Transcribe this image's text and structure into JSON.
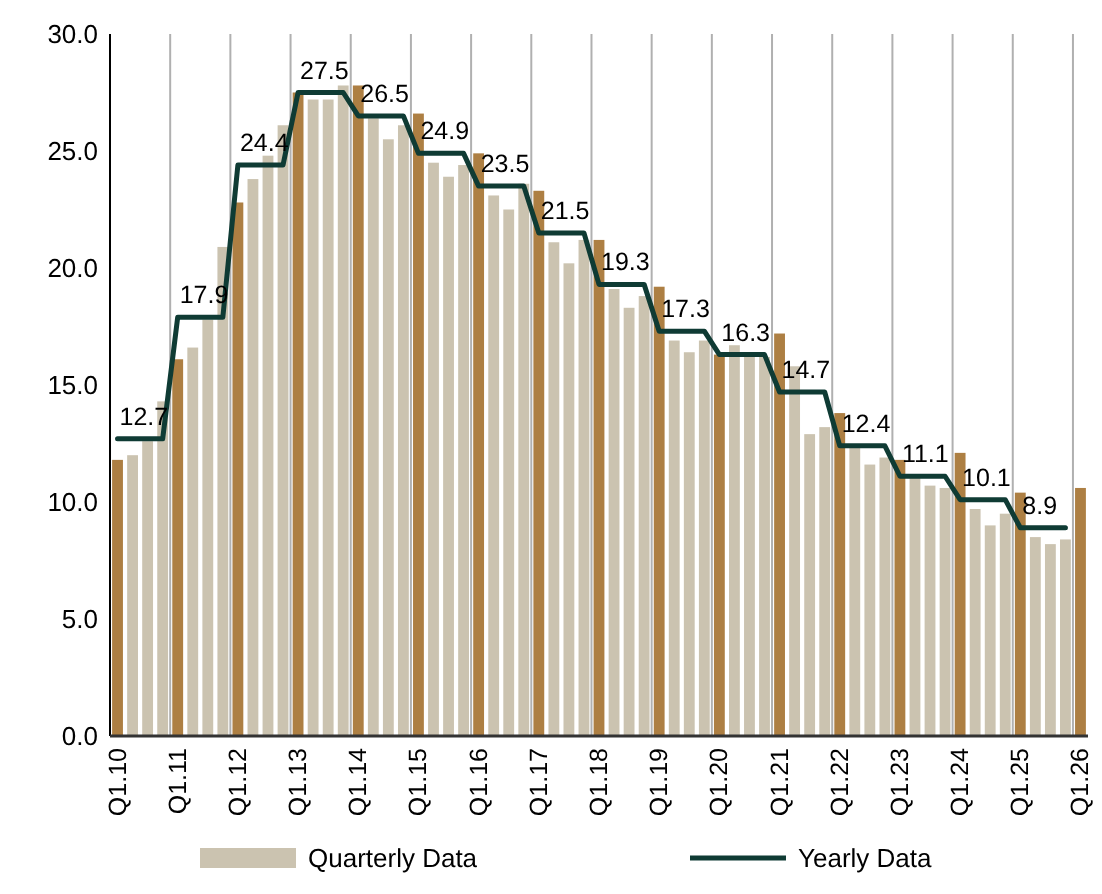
{
  "chart_data": {
    "type": "bar",
    "categories": [
      "Q1.10",
      null,
      null,
      null,
      "Q1.11",
      null,
      null,
      null,
      "Q1.12",
      null,
      null,
      null,
      "Q1.13",
      null,
      null,
      null,
      "Q1.14",
      null,
      null,
      null,
      "Q1.15",
      null,
      null,
      null,
      "Q1.16",
      null,
      null,
      null,
      "Q1.17",
      null,
      null,
      null,
      "Q1.18",
      null,
      null,
      null,
      "Q1.19",
      null,
      null,
      null,
      "Q1.20",
      null,
      null,
      null,
      "Q1.21",
      null,
      null,
      null,
      "Q1.22",
      null,
      null,
      null,
      "Q1.23",
      null,
      null,
      null,
      "Q1.24",
      null,
      null,
      null,
      "Q1.25",
      null,
      null,
      null,
      "Q1.26"
    ],
    "series": [
      {
        "name": "Quarterly Data",
        "color": "#cbc3b0",
        "colors": [
          "#ad7f43",
          "#cbc3b0",
          "#cbc3b0",
          "#cbc3b0",
          "#ad7f43",
          "#cbc3b0",
          "#cbc3b0",
          "#cbc3b0",
          "#ad7f43",
          "#cbc3b0",
          "#cbc3b0",
          "#cbc3b0",
          "#ad7f43",
          "#cbc3b0",
          "#cbc3b0",
          "#cbc3b0",
          "#ad7f43",
          "#cbc3b0",
          "#cbc3b0",
          "#cbc3b0",
          "#ad7f43",
          "#cbc3b0",
          "#cbc3b0",
          "#cbc3b0",
          "#ad7f43",
          "#cbc3b0",
          "#cbc3b0",
          "#cbc3b0",
          "#ad7f43",
          "#cbc3b0",
          "#cbc3b0",
          "#cbc3b0",
          "#ad7f43",
          "#cbc3b0",
          "#cbc3b0",
          "#cbc3b0",
          "#ad7f43",
          "#cbc3b0",
          "#cbc3b0",
          "#cbc3b0",
          "#ad7f43",
          "#cbc3b0",
          "#cbc3b0",
          "#cbc3b0",
          "#ad7f43",
          "#cbc3b0",
          "#cbc3b0",
          "#cbc3b0",
          "#ad7f43",
          "#cbc3b0",
          "#cbc3b0",
          "#cbc3b0",
          "#ad7f43",
          "#cbc3b0",
          "#cbc3b0",
          "#cbc3b0",
          "#ad7f43",
          "#cbc3b0",
          "#cbc3b0",
          "#cbc3b0",
          "#ad7f43",
          "#cbc3b0",
          "#cbc3b0",
          "#cbc3b0",
          "#ad7f43"
        ],
        "values": [
          11.8,
          12.0,
          12.6,
          14.3,
          16.1,
          16.6,
          17.8,
          20.9,
          22.8,
          23.8,
          24.8,
          26.1,
          27.5,
          27.2,
          27.2,
          27.8,
          27.8,
          26.4,
          25.5,
          26.1,
          26.6,
          24.5,
          23.9,
          24.4,
          24.9,
          23.1,
          22.5,
          23.6,
          23.3,
          21.1,
          20.2,
          21.2,
          21.2,
          19.1,
          18.3,
          18.8,
          19.2,
          16.9,
          16.4,
          16.9,
          16.3,
          16.7,
          16.3,
          16.2,
          17.2,
          15.8,
          12.9,
          13.2,
          13.8,
          12.4,
          11.6,
          11.9,
          11.8,
          11.1,
          10.7,
          10.6,
          12.1,
          9.7,
          9.0,
          9.5,
          10.4,
          8.5,
          8.2,
          8.4,
          10.6
        ]
      },
      {
        "name": "Yearly Data",
        "type": "line",
        "color": "#0f3b34",
        "values": [
          12.7,
          12.7,
          12.7,
          12.7,
          17.9,
          17.9,
          17.9,
          17.9,
          24.4,
          24.4,
          24.4,
          24.4,
          27.5,
          27.5,
          27.5,
          27.5,
          26.5,
          26.5,
          26.5,
          26.5,
          24.9,
          24.9,
          24.9,
          24.9,
          23.5,
          23.5,
          23.5,
          23.5,
          21.5,
          21.5,
          21.5,
          21.5,
          19.3,
          19.3,
          19.3,
          19.3,
          17.3,
          17.3,
          17.3,
          17.3,
          16.3,
          16.3,
          16.3,
          16.3,
          14.7,
          14.7,
          14.7,
          14.7,
          12.4,
          12.4,
          12.4,
          12.4,
          11.1,
          11.1,
          11.1,
          11.1,
          10.1,
          10.1,
          10.1,
          10.1,
          8.9,
          8.9,
          8.9,
          8.9,
          null
        ],
        "value_labels": [
          "12.7",
          null,
          null,
          null,
          "17.9",
          null,
          null,
          null,
          "24.4",
          null,
          null,
          null,
          "27.5",
          null,
          null,
          null,
          "26.5",
          null,
          null,
          null,
          "24.9",
          null,
          null,
          null,
          "23.5",
          null,
          null,
          null,
          "21.5",
          null,
          null,
          null,
          "19.3",
          null,
          null,
          null,
          "17.3",
          null,
          null,
          null,
          "16.3",
          null,
          null,
          null,
          "14.7",
          null,
          null,
          null,
          "12.4",
          null,
          null,
          null,
          "11.1",
          null,
          null,
          null,
          "10.1",
          null,
          null,
          null,
          "8.9",
          null,
          null,
          null,
          null
        ]
      }
    ],
    "ylim": [
      0,
      30
    ],
    "yticks": [
      {
        "value": 0,
        "label": "0.0"
      },
      {
        "value": 5,
        "label": "5.0"
      },
      {
        "value": 10,
        "label": "10.0"
      },
      {
        "value": 15,
        "label": "15.0"
      },
      {
        "value": 20,
        "label": "20.0"
      },
      {
        "value": 25,
        "label": "25.0"
      },
      {
        "value": 30,
        "label": "30.0"
      }
    ],
    "grid": "x",
    "legend": "bottom"
  }
}
